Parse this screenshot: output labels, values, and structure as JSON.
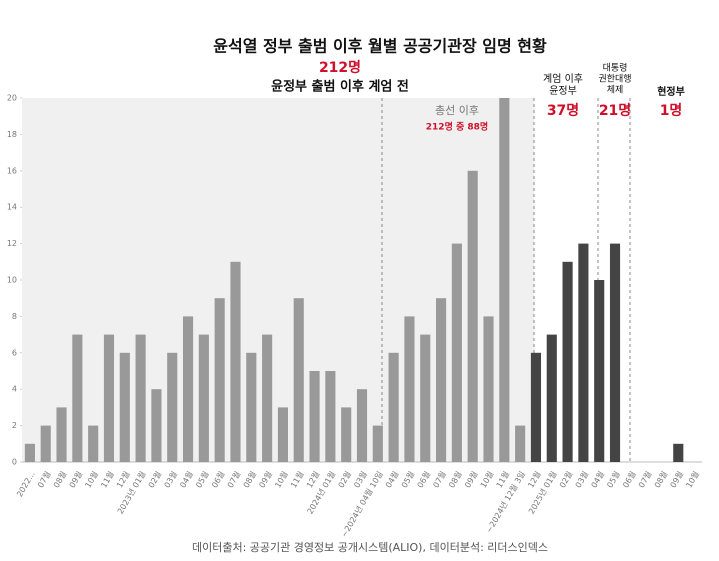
{
  "chart_data": {
    "type": "bar",
    "title": "윤석열 정부 출범 이후 월별 공공기관장 임명 현황",
    "categories": [
      "2022...",
      "07월",
      "08월",
      "09월",
      "10월",
      "11월",
      "12월",
      "2023년 01월",
      "02월",
      "03월",
      "04월",
      "05월",
      "06월",
      "07월",
      "08월",
      "09월",
      "10월",
      "11월",
      "12월",
      "2024년 01월",
      "02월",
      "03월",
      "~2024년 04월 10일",
      "04월",
      "05월",
      "06월",
      "07월",
      "08월",
      "09월",
      "10월",
      "11월",
      "~2024년 12월 3일",
      "12월",
      "2025년 01월",
      "02월",
      "03월",
      "04월",
      "05월",
      "06월",
      "07월",
      "08월",
      "09월",
      "10월"
    ],
    "values": [
      1,
      2,
      3,
      7,
      2,
      7,
      6,
      7,
      4,
      6,
      8,
      7,
      9,
      11,
      6,
      7,
      3,
      9,
      5,
      5,
      3,
      4,
      2,
      6,
      8,
      7,
      9,
      12,
      16,
      8,
      20,
      2,
      6,
      7,
      11,
      12,
      10,
      12,
      0,
      0,
      0,
      1,
      0
    ],
    "bar_colors": [
      "#999999",
      "#999999",
      "#999999",
      "#999999",
      "#999999",
      "#999999",
      "#999999",
      "#999999",
      "#999999",
      "#999999",
      "#999999",
      "#999999",
      "#999999",
      "#999999",
      "#999999",
      "#999999",
      "#999999",
      "#999999",
      "#999999",
      "#999999",
      "#999999",
      "#999999",
      "#999999",
      "#999999",
      "#999999",
      "#999999",
      "#999999",
      "#999999",
      "#999999",
      "#999999",
      "#999999",
      "#999999",
      "#444444",
      "#444444",
      "#444444",
      "#444444",
      "#444444",
      "#444444",
      "#444444",
      "#444444",
      "#444444",
      "#444444",
      "#444444"
    ],
    "ylim": [
      0,
      20
    ],
    "yticks": [
      0,
      2,
      4,
      6,
      8,
      10,
      12,
      14,
      16,
      18,
      20
    ],
    "grid": false,
    "annotations": [
      {
        "lines": [
          "윤정부 출범 이후 계엄 전"
        ],
        "count": "212명"
      },
      {
        "lines": [
          "총선 이후"
        ],
        "count": "212명 중 88명"
      },
      {
        "lines": [
          "계엄 이후",
          "윤정부"
        ],
        "count": "37명"
      },
      {
        "lines": [
          "대통령",
          "권한대행",
          "체제"
        ],
        "count": "21명"
      },
      {
        "lines": [
          "현정부"
        ],
        "count": "1명"
      }
    ],
    "source": "데이터출처: 공공기관 경영정보 공개시스템(ALIO), 데이터분석: 리더스인덱스"
  }
}
